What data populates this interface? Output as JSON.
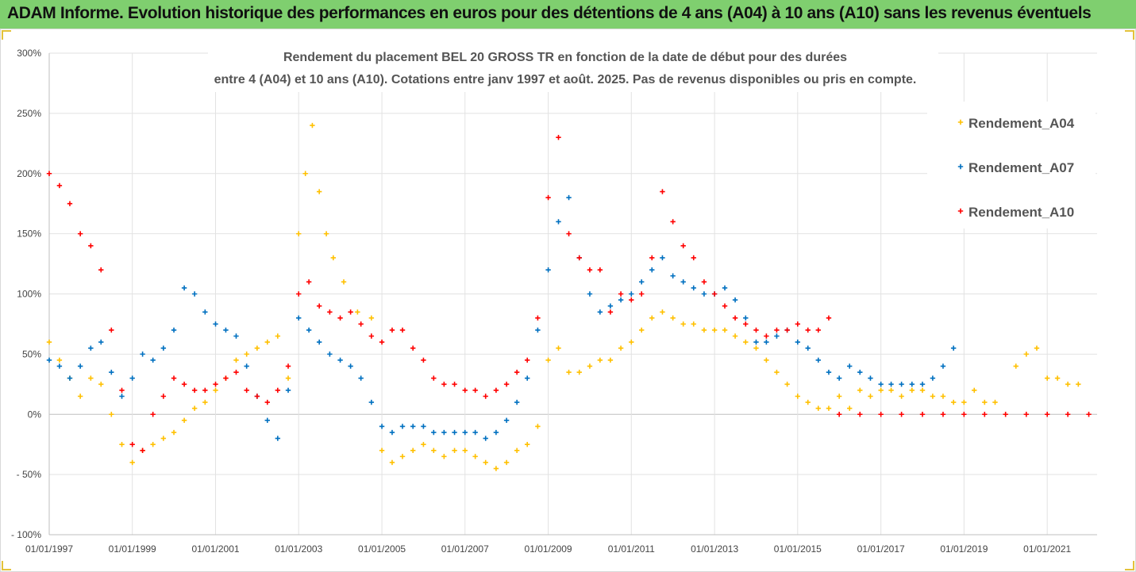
{
  "banner": {
    "title": "ADAM Informe. Evolution historique des performances en euros pour des détentions de 4 ans (A04) à 10 ans (A10) sans les revenus éventuels"
  },
  "colors": {
    "A04": "#ffc000",
    "A07": "#0070c0",
    "A10": "#ff0000",
    "banner": "#7fcf6f"
  },
  "chart_data": {
    "type": "scatter",
    "title_line1": "Rendement du placement BEL 20 GROSS TR en fonction de la date de début pour des durées",
    "title_line2": "entre 4 (A04) et 10 ans (A10). Cotations entre janv 1997 et août. 2025. Pas de revenus disponibles ou pris en compte.",
    "xlabel": "",
    "ylabel": "",
    "x_ticks": [
      "01/01/1997",
      "01/01/1999",
      "01/01/2001",
      "01/01/2003",
      "01/01/2005",
      "01/01/2007",
      "01/01/2009",
      "01/01/2011",
      "01/01/2013",
      "01/01/2015",
      "01/01/2017",
      "01/01/2019",
      "01/01/2021"
    ],
    "xlim": [
      "1997-01-01",
      "2022-03-15"
    ],
    "y_ticks": [
      "300%",
      "250%",
      "200%",
      "150%",
      "100%",
      "50%",
      "0%",
      "- 50%",
      "- 100%"
    ],
    "ylim": [
      -100,
      300
    ],
    "legend_position": "right",
    "grid": true,
    "series": [
      {
        "name": "Rendement_A04",
        "color": "#ffc000",
        "x": [
          "1997-01-01",
          "1997-04-01",
          "1997-07-01",
          "1997-10-01",
          "1998-01-01",
          "1998-04-01",
          "1998-07-01",
          "1998-10-01",
          "1999-01-01",
          "1999-04-01",
          "1999-07-01",
          "1999-10-01",
          "2000-01-01",
          "2000-04-01",
          "2000-07-01",
          "2000-10-01",
          "2001-01-01",
          "2001-04-01",
          "2001-07-01",
          "2001-10-01",
          "2002-01-01",
          "2002-04-01",
          "2002-07-01",
          "2002-10-01",
          "2003-01-01",
          "2003-03-01",
          "2003-05-01",
          "2003-07-01",
          "2003-09-01",
          "2003-11-01",
          "2004-02-01",
          "2004-06-01",
          "2004-10-01",
          "2005-01-01",
          "2005-04-01",
          "2005-07-01",
          "2005-10-01",
          "2006-01-01",
          "2006-04-01",
          "2006-07-01",
          "2006-10-01",
          "2007-01-01",
          "2007-04-01",
          "2007-07-01",
          "2007-10-01",
          "2008-01-01",
          "2008-04-01",
          "2008-07-01",
          "2008-10-01",
          "2009-01-01",
          "2009-04-01",
          "2009-07-01",
          "2009-10-01",
          "2010-01-01",
          "2010-04-01",
          "2010-07-01",
          "2010-10-01",
          "2011-01-01",
          "2011-04-01",
          "2011-07-01",
          "2011-10-01",
          "2012-01-01",
          "2012-04-01",
          "2012-07-01",
          "2012-10-01",
          "2013-01-01",
          "2013-04-01",
          "2013-07-01",
          "2013-10-01",
          "2014-01-01",
          "2014-04-01",
          "2014-07-01",
          "2014-10-01",
          "2015-01-01",
          "2015-04-01",
          "2015-07-01",
          "2015-10-01",
          "2016-01-01",
          "2016-04-01",
          "2016-07-01",
          "2016-10-01",
          "2017-01-01",
          "2017-04-01",
          "2017-07-01",
          "2017-10-01",
          "2018-01-01",
          "2018-04-01",
          "2018-07-01",
          "2018-10-01",
          "2019-01-01",
          "2019-04-01",
          "2019-07-01",
          "2019-10-01",
          "2020-01-01",
          "2020-04-01",
          "2020-07-01",
          "2020-10-01",
          "2021-01-01",
          "2021-04-01",
          "2021-07-01",
          "2021-10-01"
        ],
        "y": [
          60,
          45,
          30,
          15,
          30,
          25,
          0,
          -25,
          -40,
          -30,
          -25,
          -20,
          -15,
          -5,
          5,
          10,
          20,
          30,
          45,
          50,
          55,
          60,
          65,
          30,
          150,
          200,
          240,
          185,
          150,
          130,
          110,
          85,
          80,
          -30,
          -40,
          -35,
          -30,
          -25,
          -30,
          -35,
          -30,
          -30,
          -35,
          -40,
          -45,
          -40,
          -30,
          -25,
          -10,
          45,
          55,
          35,
          35,
          40,
          45,
          45,
          55,
          60,
          70,
          80,
          85,
          80,
          75,
          75,
          70,
          70,
          70,
          65,
          60,
          55,
          45,
          35,
          25,
          15,
          10,
          5,
          5,
          15,
          5,
          20,
          15,
          20,
          20,
          15,
          20,
          20,
          15,
          15,
          10,
          10,
          20,
          10,
          10,
          0,
          40,
          50,
          55,
          30,
          30,
          25,
          25
        ]
      },
      {
        "name": "Rendement_A07",
        "color": "#0070c0",
        "x": [
          "1997-01-01",
          "1997-04-01",
          "1997-07-01",
          "1997-10-01",
          "1998-01-01",
          "1998-04-01",
          "1998-07-01",
          "1998-10-01",
          "1999-01-01",
          "1999-04-01",
          "1999-07-01",
          "1999-10-01",
          "2000-01-01",
          "2000-04-01",
          "2000-07-01",
          "2000-10-01",
          "2001-01-01",
          "2001-04-01",
          "2001-07-01",
          "2001-10-01",
          "2002-01-01",
          "2002-04-01",
          "2002-07-01",
          "2002-10-01",
          "2003-01-01",
          "2003-04-01",
          "2003-07-01",
          "2003-10-01",
          "2004-01-01",
          "2004-04-01",
          "2004-07-01",
          "2004-10-01",
          "2005-01-01",
          "2005-04-01",
          "2005-07-01",
          "2005-10-01",
          "2006-01-01",
          "2006-04-01",
          "2006-07-01",
          "2006-10-01",
          "2007-01-01",
          "2007-04-01",
          "2007-07-01",
          "2007-10-01",
          "2008-01-01",
          "2008-04-01",
          "2008-07-01",
          "2008-10-01",
          "2009-01-01",
          "2009-04-01",
          "2009-07-01",
          "2009-10-01",
          "2010-01-01",
          "2010-04-01",
          "2010-07-01",
          "2010-10-01",
          "2011-01-01",
          "2011-04-01",
          "2011-07-01",
          "2011-10-01",
          "2012-01-01",
          "2012-04-01",
          "2012-07-01",
          "2012-10-01",
          "2013-01-01",
          "2013-04-01",
          "2013-07-01",
          "2013-10-01",
          "2014-01-01",
          "2014-04-01",
          "2014-07-01",
          "2014-10-01",
          "2015-01-01",
          "2015-04-01",
          "2015-07-01",
          "2015-10-01",
          "2016-01-01",
          "2016-04-01",
          "2016-07-01",
          "2016-10-01",
          "2017-01-01",
          "2017-04-01",
          "2017-07-01",
          "2017-10-01",
          "2018-01-01",
          "2018-04-01",
          "2018-07-01",
          "2018-10-01"
        ],
        "y": [
          45,
          40,
          30,
          40,
          55,
          60,
          35,
          15,
          30,
          50,
          45,
          55,
          70,
          105,
          100,
          85,
          75,
          70,
          65,
          40,
          15,
          -5,
          -20,
          20,
          80,
          70,
          60,
          50,
          45,
          40,
          30,
          10,
          -10,
          -15,
          -10,
          -10,
          -10,
          -15,
          -15,
          -15,
          -15,
          -15,
          -20,
          -15,
          -5,
          10,
          30,
          70,
          120,
          160,
          180,
          130,
          100,
          85,
          90,
          95,
          100,
          110,
          120,
          130,
          115,
          110,
          105,
          100,
          100,
          105,
          95,
          80,
          60,
          60,
          65,
          70,
          60,
          55,
          45,
          35,
          30,
          40,
          35,
          30,
          25,
          25,
          25,
          25,
          25,
          30,
          40,
          55
        ]
      },
      {
        "name": "Rendement_A10",
        "color": "#ff0000",
        "x": [
          "1997-01-01",
          "1997-04-01",
          "1997-07-01",
          "1997-10-01",
          "1998-01-01",
          "1998-04-01",
          "1998-07-01",
          "1998-10-01",
          "1999-01-01",
          "1999-04-01",
          "1999-07-01",
          "1999-10-01",
          "2000-01-01",
          "2000-04-01",
          "2000-07-01",
          "2000-10-01",
          "2001-01-01",
          "2001-04-01",
          "2001-07-01",
          "2001-10-01",
          "2002-01-01",
          "2002-04-01",
          "2002-07-01",
          "2002-10-01",
          "2003-01-01",
          "2003-04-01",
          "2003-07-01",
          "2003-10-01",
          "2004-01-01",
          "2004-04-01",
          "2004-07-01",
          "2004-10-01",
          "2005-01-01",
          "2005-04-01",
          "2005-07-01",
          "2005-10-01",
          "2006-01-01",
          "2006-04-01",
          "2006-07-01",
          "2006-10-01",
          "2007-01-01",
          "2007-04-01",
          "2007-07-01",
          "2007-10-01",
          "2008-01-01",
          "2008-04-01",
          "2008-07-01",
          "2008-10-01",
          "2009-01-01",
          "2009-04-01",
          "2009-07-01",
          "2009-10-01",
          "2010-01-01",
          "2010-04-01",
          "2010-07-01",
          "2010-10-01",
          "2011-01-01",
          "2011-04-01",
          "2011-07-01",
          "2011-10-01",
          "2012-01-01",
          "2012-04-01",
          "2012-07-01",
          "2012-10-01",
          "2013-01-01",
          "2013-04-01",
          "2013-07-01",
          "2013-10-01",
          "2014-01-01",
          "2014-04-01",
          "2014-07-01",
          "2014-10-01",
          "2015-01-01",
          "2015-04-01",
          "2015-07-01",
          "2015-10-01",
          "2016-01-01",
          "2016-07-01",
          "2017-01-01",
          "2017-07-01",
          "2018-01-01",
          "2018-07-01",
          "2019-01-01",
          "2019-07-01",
          "2020-01-01",
          "2020-07-01",
          "2021-01-01",
          "2021-07-01",
          "2022-01-01"
        ],
        "y": [
          200,
          190,
          175,
          150,
          140,
          120,
          70,
          20,
          -25,
          -30,
          0,
          15,
          30,
          25,
          20,
          20,
          25,
          30,
          35,
          20,
          15,
          10,
          20,
          40,
          100,
          110,
          90,
          85,
          80,
          85,
          75,
          65,
          60,
          70,
          70,
          55,
          45,
          30,
          25,
          25,
          20,
          20,
          15,
          20,
          25,
          35,
          45,
          80,
          180,
          230,
          150,
          130,
          120,
          120,
          85,
          100,
          95,
          100,
          130,
          185,
          160,
          140,
          130,
          110,
          100,
          90,
          80,
          75,
          70,
          65,
          70,
          70,
          75,
          70,
          70,
          80,
          0,
          0,
          0,
          0,
          0,
          0,
          0,
          0,
          0,
          0,
          0,
          0,
          0
        ]
      }
    ]
  }
}
